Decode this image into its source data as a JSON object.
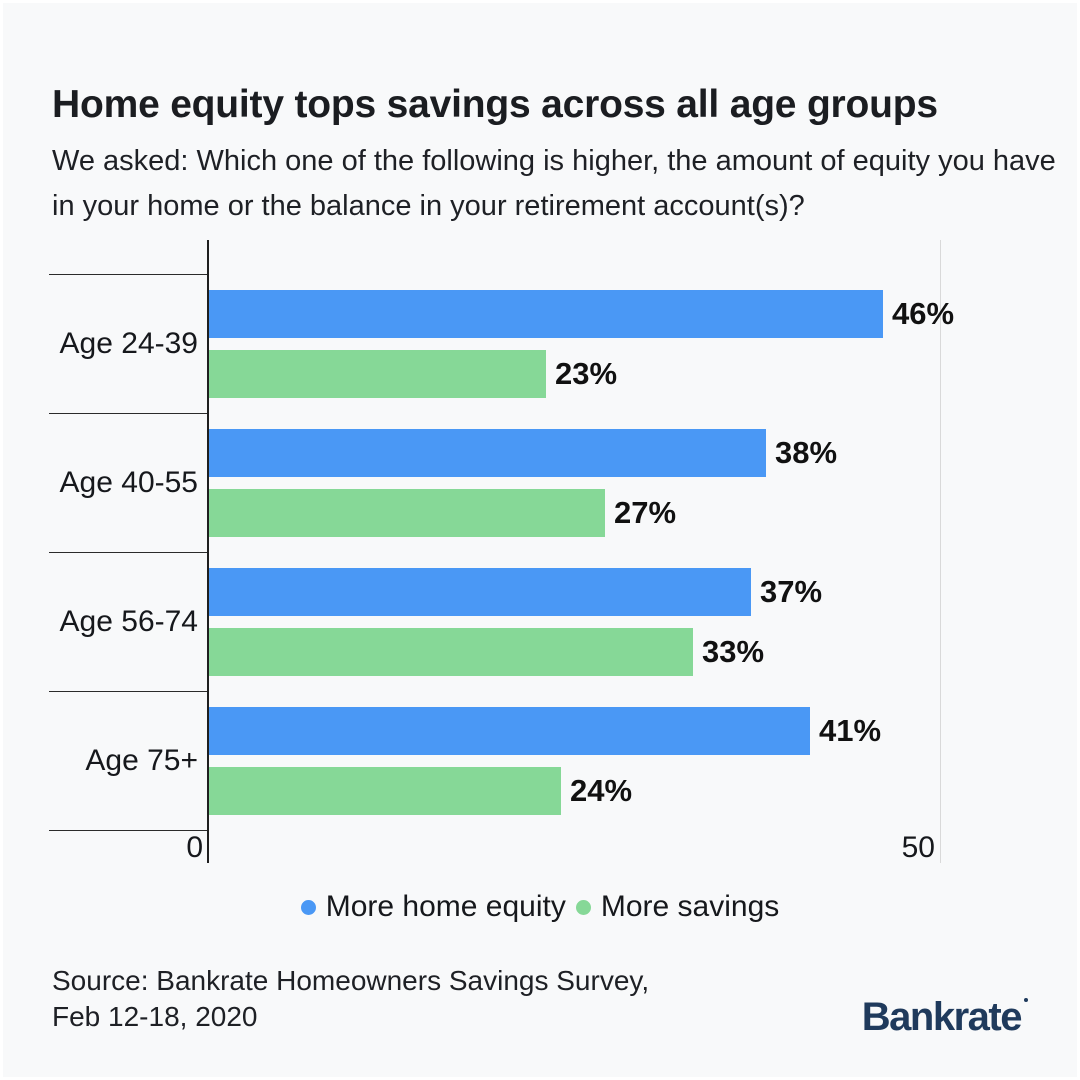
{
  "header": {
    "title": "Home equity tops savings across all age groups",
    "subtitle": "We asked: Which one of the following is higher, the amount of equity you have in your home or the balance in your retirement account(s)?"
  },
  "chart_data": {
    "type": "bar",
    "orientation": "horizontal",
    "categories": [
      "Age 24-39",
      "Age 40-55",
      "Age 56-74",
      "Age 75+"
    ],
    "series": [
      {
        "name": "More home equity",
        "color": "#4A98F5",
        "values": [
          46,
          38,
          37,
          41
        ]
      },
      {
        "name": "More savings",
        "color": "#86D897",
        "values": [
          23,
          27,
          33,
          24
        ]
      }
    ],
    "value_suffix": "%",
    "xlim": [
      0,
      50
    ],
    "x_tick_labels": [
      "0",
      "50"
    ],
    "grid": "single vertical gridline at 50",
    "legend_position": "bottom-center",
    "bar_labels": "bold percentage at end of each bar"
  },
  "footer": {
    "source_line1": "Source: Bankrate Homeowners Savings Survey,",
    "source_line2": "Feb 12-18, 2020",
    "logo_text": "Bankrate"
  },
  "colors": {
    "background": "#F8F9FA",
    "text": "#1B1D21",
    "axis": "#1F1F1F",
    "gridline": "#D9D9D9",
    "home_equity_blue": "#4A98F5",
    "savings_green": "#86D897",
    "logo_navy": "#1F3A5C"
  }
}
